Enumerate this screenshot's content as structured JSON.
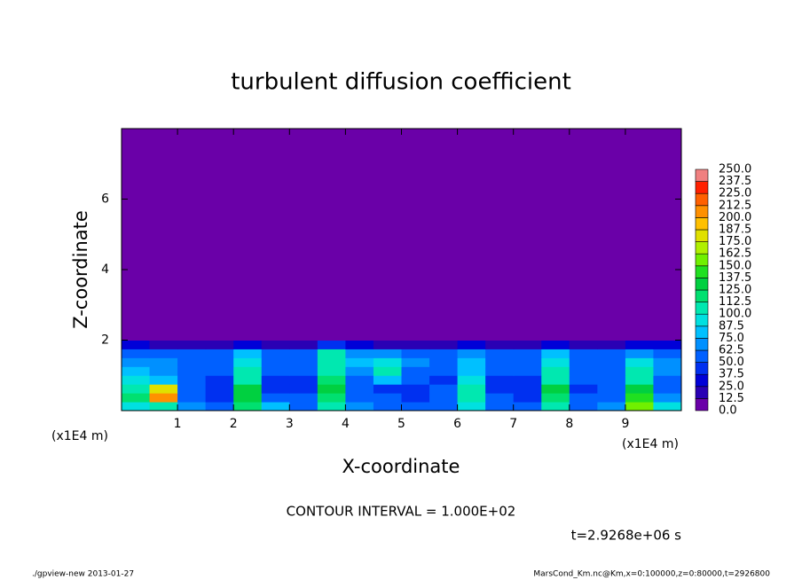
{
  "chart_data": {
    "type": "contour",
    "title": "turbulent diffusion coefficient",
    "xlabel": "X-coordinate",
    "ylabel": "Z-coordinate",
    "x_unit": "(x1E4 m)",
    "interval_note": "CONTOUR INTERVAL = 1.000E+02",
    "time_note": "t=2.9268e+06 s",
    "footer_left": "./gpview-new  2013-01-27",
    "footer_right": "MarsCond_Km.nc@Km,x=0:100000,z=0:80000,t=2926800",
    "xlim": [
      0,
      10
    ],
    "ylim": [
      0,
      8
    ],
    "xticks": [
      1,
      2,
      3,
      4,
      5,
      6,
      7,
      8,
      9
    ],
    "yticks": [
      2,
      4,
      6
    ],
    "x_edges": [
      0,
      0.5,
      1,
      1.5,
      2,
      2.5,
      3,
      3.5,
      4,
      4.5,
      5,
      5.5,
      6,
      6.5,
      7,
      7.5,
      8,
      8.5,
      9,
      9.5,
      10
    ],
    "y_edges": [
      0,
      0.25,
      0.5,
      0.75,
      1,
      1.25,
      1.5,
      1.75,
      2,
      8
    ],
    "z": [
      [
        90,
        110,
        70,
        60,
        120,
        80,
        60,
        110,
        70,
        60,
        50,
        60,
        90,
        60,
        50,
        110,
        60,
        70,
        150,
        90
      ],
      [
        120,
        200,
        60,
        45,
        130,
        55,
        50,
        120,
        60,
        50,
        45,
        55,
        110,
        50,
        45,
        120,
        50,
        55,
        140,
        70
      ],
      [
        100,
        180,
        55,
        40,
        125,
        45,
        40,
        130,
        55,
        45,
        40,
        50,
        100,
        40,
        40,
        125,
        45,
        50,
        130,
        60
      ],
      [
        90,
        80,
        50,
        40,
        110,
        45,
        45,
        120,
        60,
        80,
        50,
        45,
        90,
        45,
        45,
        110,
        50,
        50,
        110,
        60
      ],
      [
        80,
        70,
        55,
        50,
        100,
        50,
        55,
        100,
        70,
        110,
        60,
        50,
        85,
        55,
        55,
        100,
        55,
        55,
        100,
        65
      ],
      [
        70,
        70,
        60,
        60,
        90,
        60,
        60,
        110,
        80,
        90,
        70,
        60,
        80,
        60,
        60,
        90,
        60,
        60,
        90,
        70
      ],
      [
        60,
        60,
        55,
        60,
        80,
        60,
        60,
        100,
        70,
        70,
        60,
        60,
        70,
        60,
        60,
        80,
        60,
        60,
        70,
        60
      ],
      [
        30,
        20,
        15,
        20,
        30,
        20,
        20,
        40,
        25,
        20,
        20,
        20,
        25,
        20,
        20,
        30,
        20,
        20,
        25,
        30
      ],
      [
        0,
        0,
        0,
        0,
        0,
        0,
        0,
        0,
        0,
        0,
        0,
        0,
        0,
        0,
        0,
        0,
        0,
        0,
        0,
        0
      ]
    ],
    "colorbar_ticks": [
      {
        "value": 0,
        "label": "0.0"
      },
      12.5,
      {
        "value": 25,
        "label": "25.0"
      },
      37.5,
      {
        "value": 50,
        "label": "50.0"
      },
      62.5,
      {
        "value": 75,
        "label": "75.0"
      },
      87.5,
      {
        "value": 100,
        "label": "100.0"
      },
      112.5,
      {
        "value": 125,
        "label": "125.0"
      },
      137.5,
      {
        "value": 150,
        "label": "150.0"
      },
      162.5,
      {
        "value": 175,
        "label": "175.0"
      },
      187.5,
      {
        "value": 200,
        "label": "200.0"
      },
      212.5,
      {
        "value": 225,
        "label": "225.0"
      },
      237.5,
      {
        "value": 250,
        "label": "250.0"
      }
    ],
    "colors": [
      "#6a00a8",
      "#2a00b4",
      "#0000d8",
      "#0030f0",
      "#0060ff",
      "#0090ff",
      "#00c0ff",
      "#00e0e0",
      "#00e8b0",
      "#00e070",
      "#00d040",
      "#20e020",
      "#70f000",
      "#b0f000",
      "#e0e000",
      "#ffc000",
      "#ff9000",
      "#ff6000",
      "#ff2000",
      "#f08080"
    ]
  }
}
